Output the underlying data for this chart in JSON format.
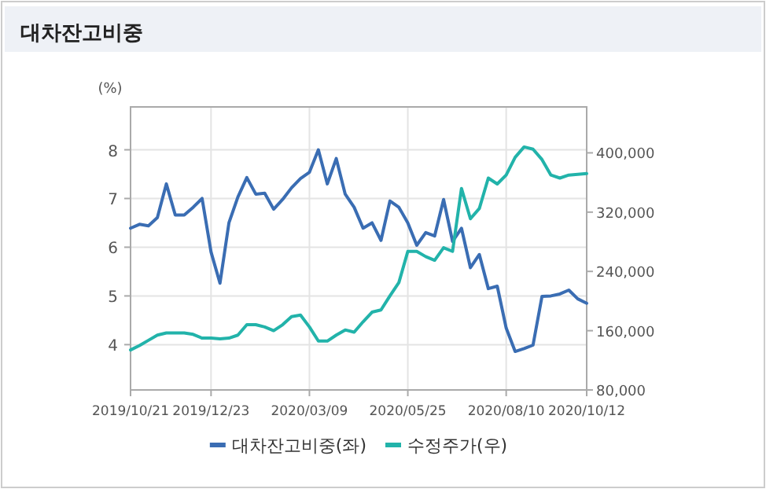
{
  "chart_data": {
    "type": "line",
    "title": "대차잔고비중",
    "ylabel": "(%)",
    "x": [
      "2019-10-21",
      "2019-10-28",
      "2019-11-04",
      "2019-11-11",
      "2019-11-18",
      "2019-11-25",
      "2019-12-02",
      "2019-12-09",
      "2019-12-16",
      "2019-12-23",
      "2019-12-30",
      "2020-01-06",
      "2020-01-13",
      "2020-01-20",
      "2020-01-27",
      "2020-02-03",
      "2020-02-10",
      "2020-02-17",
      "2020-02-24",
      "2020-03-02",
      "2020-03-09",
      "2020-03-16",
      "2020-03-23",
      "2020-03-30",
      "2020-04-06",
      "2020-04-13",
      "2020-04-20",
      "2020-04-27",
      "2020-05-04",
      "2020-05-11",
      "2020-05-18",
      "2020-05-25",
      "2020-06-01",
      "2020-06-08",
      "2020-06-15",
      "2020-06-22",
      "2020-06-29",
      "2020-07-06",
      "2020-07-13",
      "2020-07-20",
      "2020-07-27",
      "2020-08-03",
      "2020-08-10",
      "2020-08-17",
      "2020-08-24",
      "2020-08-31",
      "2020-09-07",
      "2020-09-14",
      "2020-09-21",
      "2020-09-28",
      "2020-10-05",
      "2020-10-12"
    ],
    "xlim": [
      "2019-10-21",
      "2020-10-12"
    ],
    "xticks": [
      {
        "value": "2019-10-21",
        "label": "2019/10/21"
      },
      {
        "value": "2019-12-23",
        "label": "2019/12/23"
      },
      {
        "value": "2020-03-09",
        "label": "2020/03/09"
      },
      {
        "value": "2020-05-25",
        "label": "2020/05/25"
      },
      {
        "value": "2020-08-10",
        "label": "2020/08/10"
      },
      {
        "value": "2020-10-12",
        "label": "2020/10/12"
      }
    ],
    "ylim": [
      3.07,
      8.88
    ],
    "yticks": [
      4,
      5,
      6,
      7,
      8
    ],
    "y2lim": [
      80000,
      462000
    ],
    "y2ticks": [
      {
        "value": 80000,
        "label": "80,000"
      },
      {
        "value": 160000,
        "label": "160,000"
      },
      {
        "value": 240000,
        "label": "240,000"
      },
      {
        "value": 320000,
        "label": "320,000"
      },
      {
        "value": 400000,
        "label": "400,000"
      }
    ],
    "grid": true,
    "legend": "bottom",
    "series": [
      {
        "name": "대차잔고비중(좌)",
        "color": "#3a6db3",
        "values": [
          6.39,
          6.47,
          6.44,
          6.61,
          7.3,
          6.66,
          6.66,
          6.82,
          7.0,
          5.9,
          5.26,
          6.5,
          7.03,
          7.43,
          7.09,
          7.11,
          6.78,
          6.98,
          7.22,
          7.41,
          7.54,
          8.0,
          7.3,
          7.82,
          7.09,
          6.82,
          6.39,
          6.5,
          6.14,
          6.95,
          6.82,
          6.5,
          6.04,
          6.3,
          6.23,
          6.98,
          6.12,
          6.39,
          5.58,
          5.85,
          5.15,
          5.2,
          4.34,
          3.86,
          3.92,
          3.99,
          4.99,
          5.0,
          5.04,
          5.12,
          4.94,
          4.85
        ]
      },
      {
        "name": "수정주가(우)",
        "color": "#22b3aa",
        "axis": "y2",
        "values": [
          134000,
          140000,
          147000,
          154000,
          157000,
          157000,
          157000,
          155000,
          150000,
          150000,
          149000,
          150000,
          154000,
          168000,
          168000,
          165000,
          160000,
          168000,
          179000,
          181000,
          165000,
          146000,
          146000,
          154000,
          161000,
          158000,
          172000,
          185000,
          188000,
          207000,
          225000,
          267000,
          267000,
          260000,
          255000,
          272000,
          267000,
          352000,
          311000,
          325000,
          366000,
          358000,
          370000,
          394000,
          408000,
          405000,
          391000,
          370000,
          366000,
          370000,
          371000,
          372000
        ]
      }
    ]
  }
}
